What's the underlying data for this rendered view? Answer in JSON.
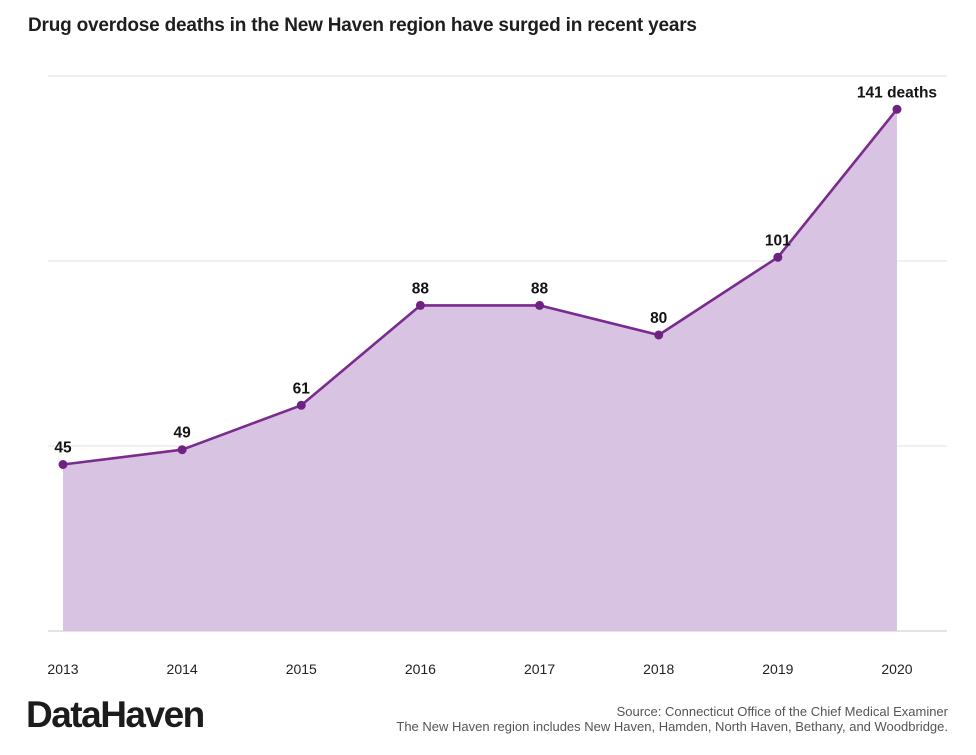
{
  "chart_data": {
    "type": "area",
    "title": "Drug overdose deaths in the New Haven region have surged in recent years",
    "categories": [
      "2013",
      "2014",
      "2015",
      "2016",
      "2017",
      "2018",
      "2019",
      "2020"
    ],
    "values": [
      45,
      49,
      61,
      88,
      88,
      80,
      101,
      141
    ],
    "point_labels": [
      "45",
      "49",
      "61",
      "88",
      "88",
      "80",
      "101",
      "141 deaths"
    ],
    "xlabel": "",
    "ylabel": "",
    "ylim": [
      0,
      160
    ],
    "gridline_values": [
      50,
      100,
      150
    ],
    "grid": "horizontal gridlines only, no y-axis tick labels",
    "legend_position": "none",
    "colors": {
      "line": "#7a2b8d",
      "point": "#6e2382",
      "area_fill": "#d8c3e3",
      "gridline": "#ececec",
      "baseline": "#dcdcdc",
      "value_label": "#141414",
      "tick_label": "#222222"
    }
  },
  "footer": {
    "logo": "DataHaven",
    "source_line1": "Source: Connecticut Office of the Chief Medical Examiner",
    "source_line2": "The New Haven region includes New Haven, Hamden, North Haven, Bethany, and Woodbridge."
  }
}
